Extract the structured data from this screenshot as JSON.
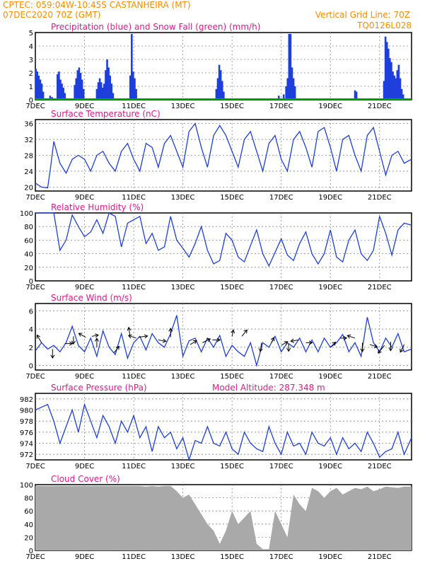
{
  "header": {
    "station": "CPTEC:  059:04W-10:45S  CASTANHEIRA (MT)",
    "run": "07DEC2020 70Z (GMT)",
    "grid_line": "Vertical Grid Line: 70Z",
    "model": "TQ0126L028"
  },
  "colors": {
    "header": "#ff8c00",
    "title": "#e0198a",
    "line": "#1f3fdc",
    "rain": "#1f3fdc",
    "snow": "#00aa00",
    "cloud": "#a9a9a9",
    "arrow": "#000000"
  },
  "chart_data": [
    {
      "id": "precip",
      "type": "bar",
      "title": "Precipitation (blue) and Snow Fall (green) (mm/h)",
      "ylim": [
        0,
        5
      ],
      "yticks": [
        "0",
        "1",
        "2",
        "3",
        "4",
        "5"
      ],
      "xticks": [
        "7DEC",
        "9DEC",
        "11DEC",
        "13DEC",
        "15DEC",
        "17DEC",
        "19DEC",
        "21DEC"
      ],
      "x_range_days": [
        7,
        22.3
      ],
      "series": [
        {
          "name": "Precipitation",
          "color": "rain",
          "values": [
            [
              7.02,
              2.3
            ],
            [
              7.08,
              2.1
            ],
            [
              7.14,
              1.8
            ],
            [
              7.2,
              1.5
            ],
            [
              7.26,
              1.2
            ],
            [
              7.32,
              0.6
            ],
            [
              7.6,
              0.3
            ],
            [
              7.68,
              0.2
            ],
            [
              7.9,
              1.9
            ],
            [
              7.96,
              2.1
            ],
            [
              8.02,
              1.5
            ],
            [
              8.08,
              1.2
            ],
            [
              8.14,
              0.9
            ],
            [
              8.2,
              0.5
            ],
            [
              8.6,
              1.1
            ],
            [
              8.66,
              1.6
            ],
            [
              8.72,
              2.2
            ],
            [
              8.78,
              2.4
            ],
            [
              8.84,
              2.0
            ],
            [
              8.9,
              1.5
            ],
            [
              8.96,
              0.8
            ],
            [
              9.5,
              0.8
            ],
            [
              9.56,
              1.3
            ],
            [
              9.62,
              1.6
            ],
            [
              9.68,
              1.3
            ],
            [
              9.74,
              0.9
            ],
            [
              9.8,
              1.2
            ],
            [
              9.86,
              2.2
            ],
            [
              9.92,
              3.0
            ],
            [
              9.98,
              2.4
            ],
            [
              10.04,
              1.8
            ],
            [
              10.1,
              1.2
            ],
            [
              10.16,
              0.5
            ],
            [
              10.86,
              1.8
            ],
            [
              10.92,
              4.9
            ],
            [
              10.98,
              2.1
            ],
            [
              11.04,
              1.6
            ],
            [
              11.1,
              0.8
            ],
            [
              14.36,
              0.8
            ],
            [
              14.42,
              1.6
            ],
            [
              14.48,
              2.6
            ],
            [
              14.54,
              2.2
            ],
            [
              14.6,
              1.4
            ],
            [
              14.66,
              0.6
            ],
            [
              16.9,
              0.3
            ],
            [
              17.1,
              0.4
            ],
            [
              17.2,
              1.0
            ],
            [
              17.26,
              1.6
            ],
            [
              17.32,
              4.9
            ],
            [
              17.38,
              4.9
            ],
            [
              17.44,
              2.4
            ],
            [
              17.5,
              1.6
            ],
            [
              17.56,
              1.0
            ],
            [
              20.0,
              0.7
            ],
            [
              20.06,
              0.6
            ],
            [
              21.18,
              1.4
            ],
            [
              21.24,
              4.7
            ],
            [
              21.3,
              4.3
            ],
            [
              21.36,
              3.8
            ],
            [
              21.42,
              3.1
            ],
            [
              21.48,
              2.8
            ],
            [
              21.54,
              2.1
            ],
            [
              21.6,
              1.8
            ],
            [
              21.66,
              1.6
            ],
            [
              21.72,
              2.2
            ],
            [
              21.78,
              2.6
            ],
            [
              21.84,
              1.6
            ],
            [
              21.9,
              0.8
            ],
            [
              21.96,
              0.4
            ]
          ]
        },
        {
          "name": "Snow Fall",
          "color": "snow",
          "values": []
        }
      ]
    },
    {
      "id": "temp",
      "type": "line",
      "title": "Surface Temperature (nC)",
      "ylim": [
        19,
        37
      ],
      "yticks": [
        "20",
        "24",
        "28",
        "32",
        "36"
      ],
      "xticks": [
        "7DEC",
        "9DEC",
        "11DEC",
        "13DEC",
        "15DEC",
        "17DEC",
        "19DEC",
        "21DEC"
      ],
      "x": [
        7.0,
        7.25,
        7.5,
        7.62,
        7.75,
        8.0,
        8.25,
        8.5,
        8.75,
        9.0,
        9.25,
        9.5,
        9.75,
        10.0,
        10.25,
        10.5,
        10.75,
        11.0,
        11.25,
        11.5,
        11.75,
        12.0,
        12.25,
        12.5,
        12.75,
        13.0,
        13.25,
        13.5,
        13.75,
        14.0,
        14.25,
        14.5,
        14.75,
        15.0,
        15.25,
        15.5,
        15.75,
        16.0,
        16.25,
        16.5,
        16.75,
        17.0,
        17.25,
        17.5,
        17.75,
        18.0,
        18.25,
        18.5,
        18.75,
        19.0,
        19.25,
        19.5,
        19.75,
        20.0,
        20.25,
        20.5,
        20.75,
        21.0,
        21.25,
        21.5,
        21.75,
        22.0,
        22.3
      ],
      "y": [
        21,
        20,
        19.8,
        25,
        31.5,
        26,
        23.5,
        27,
        28,
        27,
        24,
        28,
        29,
        26,
        24,
        29,
        31,
        27,
        24,
        31,
        30,
        25,
        31,
        33,
        29,
        25,
        34,
        36,
        30,
        25,
        33,
        35.5,
        33,
        29,
        25,
        32,
        34,
        29,
        24,
        31,
        33,
        27,
        24,
        32,
        34,
        30,
        25,
        34,
        35,
        30,
        24,
        32,
        33,
        28,
        24,
        33,
        35,
        29,
        23,
        28,
        29,
        26,
        27
      ]
    },
    {
      "id": "rh",
      "type": "line",
      "title": "Relative Humidity (%)",
      "ylim": [
        0,
        100
      ],
      "yticks": [
        "0",
        "20",
        "40",
        "60",
        "80",
        "100"
      ],
      "xticks": [
        "7DEC",
        "9DEC",
        "11DEC",
        "13DEC",
        "15DEC",
        "17DEC",
        "19DEC",
        "21DEC"
      ],
      "x": [
        7.0,
        7.25,
        7.5,
        7.75,
        8.0,
        8.25,
        8.5,
        8.75,
        9.0,
        9.25,
        9.5,
        9.75,
        10.0,
        10.25,
        10.5,
        10.75,
        11.0,
        11.25,
        11.5,
        11.75,
        12.0,
        12.25,
        12.5,
        12.75,
        13.0,
        13.25,
        13.5,
        13.75,
        14.0,
        14.25,
        14.5,
        14.75,
        15.0,
        15.25,
        15.5,
        15.75,
        16.0,
        16.25,
        16.5,
        16.75,
        17.0,
        17.25,
        17.5,
        17.75,
        18.0,
        18.25,
        18.5,
        18.75,
        19.0,
        19.25,
        19.5,
        19.75,
        20.0,
        20.25,
        20.5,
        20.75,
        21.0,
        21.25,
        21.5,
        21.75,
        22.0,
        22.3
      ],
      "y": [
        100,
        100,
        100,
        100,
        45,
        60,
        97,
        80,
        65,
        72,
        90,
        70,
        100,
        95,
        50,
        85,
        90,
        95,
        55,
        70,
        45,
        50,
        95,
        60,
        48,
        35,
        55,
        80,
        45,
        25,
        30,
        70,
        60,
        35,
        28,
        52,
        75,
        40,
        22,
        42,
        62,
        38,
        30,
        55,
        72,
        40,
        25,
        40,
        75,
        35,
        28,
        60,
        75,
        40,
        30,
        45,
        95,
        70,
        38,
        75,
        85,
        82
      ]
    },
    {
      "id": "wind",
      "type": "line",
      "title": "Surface Wind (m/s)",
      "ylim": [
        -0.5,
        6.8
      ],
      "yticks": [
        "0",
        "2",
        "4",
        "6"
      ],
      "xticks": [
        "7DEC",
        "9DEC",
        "11DEC",
        "13DEC",
        "15DEC",
        "17DEC",
        "19DEC",
        "21DEC"
      ],
      "x": [
        7.0,
        7.25,
        7.5,
        7.75,
        8.0,
        8.25,
        8.5,
        8.75,
        9.0,
        9.25,
        9.5,
        9.75,
        10.0,
        10.25,
        10.5,
        10.75,
        11.0,
        11.25,
        11.5,
        11.75,
        12.0,
        12.25,
        12.5,
        12.75,
        13.0,
        13.25,
        13.5,
        13.75,
        14.0,
        14.25,
        14.5,
        14.75,
        15.0,
        15.25,
        15.5,
        15.75,
        16.0,
        16.25,
        16.5,
        16.75,
        17.0,
        17.25,
        17.5,
        17.75,
        18.0,
        18.25,
        18.5,
        18.75,
        19.0,
        19.25,
        19.5,
        19.75,
        20.0,
        20.25,
        20.5,
        20.75,
        21.0,
        21.25,
        21.5,
        21.75,
        22.0,
        22.3
      ],
      "y": [
        1.6,
        2.5,
        1.8,
        2.2,
        1.5,
        2.5,
        4.3,
        2.2,
        1.5,
        3.0,
        1.0,
        3.8,
        2.0,
        1.2,
        3.5,
        0.8,
        2.5,
        3.2,
        1.7,
        3.5,
        2.5,
        2.0,
        3.5,
        5.5,
        1.0,
        2.7,
        3.0,
        1.5,
        3.0,
        2.0,
        3.3,
        1.0,
        2.2,
        1.5,
        1.0,
        2.5,
        0.0,
        2.5,
        2.0,
        3.2,
        1.5,
        2.5,
        2.0,
        3.0,
        1.5,
        2.8,
        1.5,
        3.0,
        2.0,
        2.5,
        3.4,
        1.5,
        2.5,
        1.0,
        5.3,
        2.5,
        1.5,
        3.0,
        2.0,
        3.5,
        1.5,
        1.8
      ],
      "vectors": [
        [
          7.25,
          2.5,
          -0.35,
          0.6
        ],
        [
          7.7,
          1.8,
          0.0,
          -0.7
        ],
        [
          8.2,
          2.4,
          0.6,
          0.0
        ],
        [
          8.55,
          3.2,
          0.0,
          -0.6
        ],
        [
          9.05,
          3.1,
          -0.55,
          0.3
        ],
        [
          9.3,
          3.2,
          0.5,
          0.1
        ],
        [
          9.5,
          2.0,
          0.0,
          0.7
        ],
        [
          10.2,
          1.4,
          0.4,
          0.5
        ],
        [
          10.85,
          3.2,
          -0.1,
          0.7
        ],
        [
          11.1,
          3.0,
          -0.6,
          0.2
        ],
        [
          11.2,
          3.1,
          0.7,
          0.1
        ],
        [
          12.0,
          2.8,
          0.6,
          -0.1
        ],
        [
          12.5,
          3.1,
          0.0,
          0.7
        ],
        [
          13.3,
          2.3,
          0.5,
          0.3
        ],
        [
          13.8,
          2.5,
          0.6,
          0.3
        ],
        [
          14.2,
          2.8,
          0.6,
          0.0
        ],
        [
          15.0,
          3.2,
          0.1,
          0.5
        ],
        [
          15.4,
          3.2,
          0.4,
          0.5
        ],
        [
          16.2,
          2.5,
          -0.1,
          -0.7
        ],
        [
          16.6,
          2.5,
          0.2,
          0.4
        ],
        [
          17.0,
          2.2,
          0.5,
          0.3
        ],
        [
          17.3,
          2.4,
          0.0,
          -0.6
        ],
        [
          17.7,
          2.8,
          -0.6,
          -0.1
        ],
        [
          18.0,
          2.5,
          0.5,
          0.0
        ],
        [
          19.0,
          2.0,
          0.4,
          0.4
        ],
        [
          19.4,
          3.0,
          0.5,
          0.0
        ],
        [
          20.0,
          3.0,
          -0.6,
          0.2
        ],
        [
          20.3,
          2.5,
          0.0,
          -0.7
        ],
        [
          20.6,
          2.3,
          0.6,
          -0.2
        ],
        [
          21.2,
          2.2,
          -0.5,
          -0.6
        ],
        [
          21.45,
          2.6,
          0.0,
          -0.7
        ],
        [
          22.0,
          2.3,
          -0.3,
          -0.6
        ]
      ]
    },
    {
      "id": "pres",
      "type": "line",
      "title": "Surface Pressure (hPa)",
      "annotation": "Model Altitude: 287.348 m",
      "ylim": [
        971,
        983
      ],
      "yticks": [
        "972",
        "974",
        "976",
        "978",
        "980",
        "982"
      ],
      "xticks": [
        "7DEC",
        "9DEC",
        "11DEC",
        "13DEC",
        "15DEC",
        "17DEC",
        "19DEC",
        "21DEC"
      ],
      "x": [
        7.0,
        7.25,
        7.5,
        7.75,
        8.0,
        8.25,
        8.5,
        8.75,
        9.0,
        9.25,
        9.5,
        9.75,
        10.0,
        10.25,
        10.5,
        10.75,
        11.0,
        11.25,
        11.5,
        11.75,
        12.0,
        12.25,
        12.5,
        12.75,
        13.0,
        13.25,
        13.5,
        13.75,
        14.0,
        14.25,
        14.5,
        14.75,
        15.0,
        15.25,
        15.5,
        15.75,
        16.0,
        16.25,
        16.5,
        16.75,
        17.0,
        17.25,
        17.5,
        17.75,
        18.0,
        18.25,
        18.5,
        18.75,
        19.0,
        19.25,
        19.5,
        19.75,
        20.0,
        20.25,
        20.5,
        20.75,
        21.0,
        21.25,
        21.5,
        21.75,
        22.0,
        22.3
      ],
      "y": [
        980,
        980.5,
        981,
        978,
        974,
        977,
        980,
        976,
        981,
        978,
        975,
        979,
        977,
        974,
        978,
        976,
        979,
        975,
        977,
        972.5,
        977,
        975,
        976,
        973,
        975,
        971,
        974.5,
        974,
        977,
        974,
        973.5,
        976,
        973,
        972,
        976,
        974,
        973,
        972.5,
        977,
        974,
        972,
        976,
        973.5,
        974,
        972,
        976,
        974,
        973.5,
        975,
        972,
        975,
        973,
        974,
        972.5,
        976,
        974,
        971.5,
        972.5,
        973,
        976,
        972,
        975
      ]
    },
    {
      "id": "cloud",
      "type": "area",
      "title": "Cloud Cover (%)",
      "ylim": [
        0,
        100
      ],
      "yticks": [
        "0",
        "20",
        "40",
        "60",
        "80",
        "100"
      ],
      "xticks": [
        "7DEC",
        "9DEC",
        "11DEC",
        "13DEC",
        "15DEC",
        "17DEC",
        "19DEC",
        "21DEC"
      ],
      "x": [
        7.0,
        7.25,
        7.5,
        7.75,
        8.0,
        8.25,
        8.5,
        8.75,
        9.0,
        9.25,
        9.5,
        9.75,
        10.0,
        10.25,
        10.5,
        10.75,
        11.0,
        11.25,
        11.5,
        11.75,
        12.0,
        12.25,
        12.5,
        12.75,
        13.0,
        13.25,
        13.5,
        13.75,
        14.0,
        14.25,
        14.5,
        14.75,
        15.0,
        15.25,
        15.5,
        15.75,
        16.0,
        16.25,
        16.5,
        16.75,
        17.0,
        17.25,
        17.5,
        17.75,
        18.0,
        18.25,
        18.5,
        18.75,
        19.0,
        19.25,
        19.5,
        19.75,
        20.0,
        20.25,
        20.5,
        20.75,
        21.0,
        21.25,
        21.5,
        21.75,
        22.0,
        22.3
      ],
      "y": [
        98,
        98,
        98,
        98,
        98,
        98,
        98,
        98,
        98,
        98,
        98,
        98,
        98,
        98,
        98,
        98,
        98,
        98,
        97,
        98,
        97,
        98,
        98,
        90,
        80,
        85,
        70,
        55,
        40,
        30,
        10,
        30,
        60,
        40,
        50,
        60,
        10,
        2,
        2,
        60,
        40,
        20,
        85,
        70,
        60,
        95,
        90,
        80,
        90,
        95,
        85,
        90,
        95,
        93,
        97,
        90,
        93,
        97,
        96,
        95,
        97,
        97
      ]
    }
  ]
}
